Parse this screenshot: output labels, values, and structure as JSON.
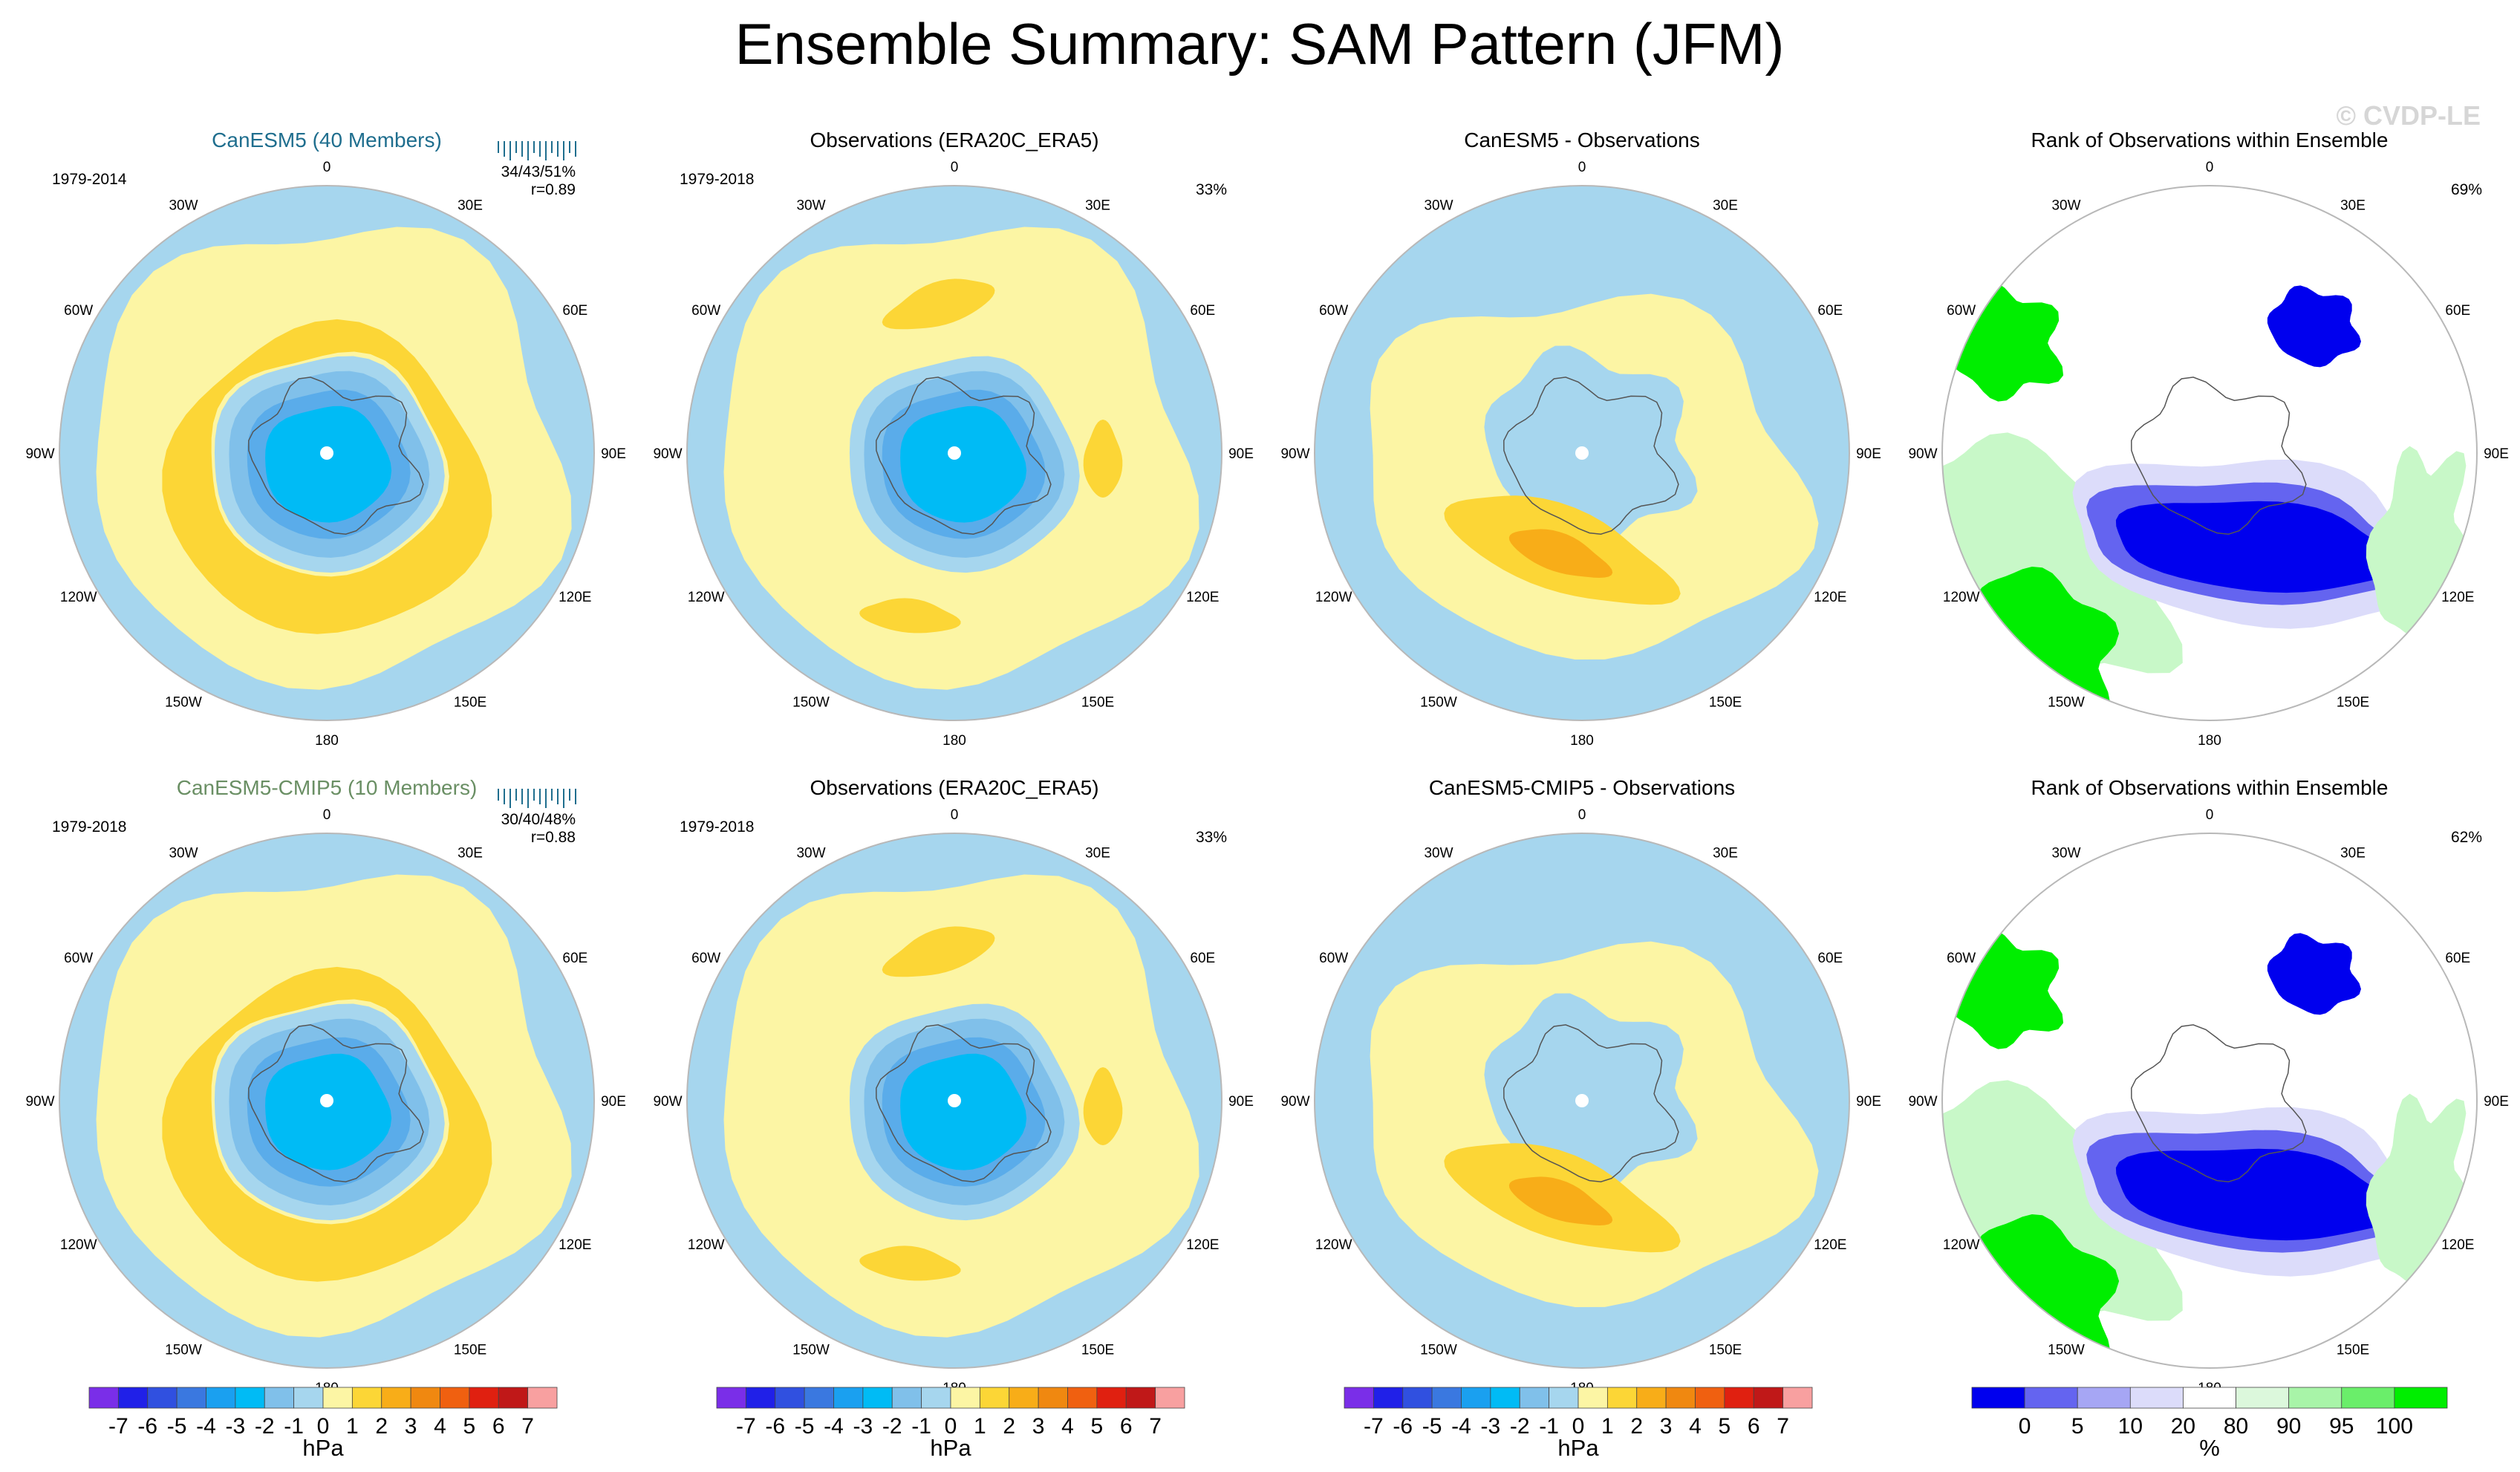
{
  "figure": {
    "title": "Ensemble Summary: SAM Pattern (JFM)",
    "watermark": "© CVDP-LE",
    "colors": {
      "ocean_bg": "#b4dcf2",
      "pos1": "#fcf5a4",
      "pos2": "#fcd636",
      "pos3": "#f8ad18",
      "neg1": "#a6d6ee",
      "neg2": "#80c0ea",
      "neg3": "#5aacea",
      "neg4": "#00bbf5",
      "rank_blue": "#0000ee",
      "rank_midblue": "#6464f0",
      "rank_lightblue": "#dcdcfa",
      "rank_green": "#00ee00",
      "rank_lightgreen": "#c8f8c8",
      "coast": "#555555"
    }
  },
  "chart_data": [
    {
      "type": "heatmap",
      "id": "r1c1",
      "title": "CanESM5 (40 Members)",
      "title_color": "#1f6e8e",
      "period": "1979-2014",
      "stats": "34/43/51%",
      "corr": "r=0.89",
      "units": "hPa",
      "projection": "south polar stereographic",
      "lon_labels": [
        "0",
        "30E",
        "60E",
        "90E",
        "120E",
        "150E",
        "180",
        "150W",
        "120W",
        "90W",
        "60W",
        "30W"
      ],
      "field": {
        "center": -4.0,
        "max": 2.5,
        "min": -4.5
      }
    },
    {
      "type": "heatmap",
      "id": "r1c2",
      "title": "Observations (ERA20C_ERA5)",
      "period": "1979-2018",
      "pct": "33%",
      "units": "hPa",
      "lon_labels": [
        "0",
        "30E",
        "60E",
        "90E",
        "120E",
        "150E",
        "180",
        "150W",
        "120W",
        "90W",
        "60W",
        "30W"
      ],
      "field": {
        "center": -4.0,
        "max": 2.0,
        "min": -4.0
      }
    },
    {
      "type": "heatmap",
      "id": "r1c3",
      "title": "CanESM5 - Observations",
      "units": "hPa",
      "lon_labels": [
        "0",
        "30E",
        "60E",
        "90E",
        "120E",
        "150E",
        "180",
        "150W",
        "120W",
        "90W",
        "60W",
        "30W"
      ],
      "field": {
        "max": 2.5,
        "min": -1.0
      }
    },
    {
      "type": "heatmap",
      "id": "r1c4",
      "title": "Rank of Observations within Ensemble",
      "pct": "69%",
      "units": "%",
      "lon_labels": [
        "0",
        "30E",
        "60E",
        "90E",
        "120E",
        "150E",
        "180",
        "150W",
        "120W",
        "90W",
        "60W",
        "30W"
      ]
    },
    {
      "type": "heatmap",
      "id": "r2c1",
      "title": "CanESM5-CMIP5 (10 Members)",
      "title_color": "#6a8f64",
      "period": "1979-2018",
      "stats": "30/40/48%",
      "corr": "r=0.88",
      "units": "hPa",
      "lon_labels": [
        "0",
        "30E",
        "60E",
        "90E",
        "120E",
        "150E",
        "180",
        "150W",
        "120W",
        "90W",
        "60W",
        "30W"
      ],
      "field": {
        "center": -4.0,
        "max": 2.0,
        "min": -4.5
      }
    },
    {
      "type": "heatmap",
      "id": "r2c2",
      "title": "Observations (ERA20C_ERA5)",
      "period": "1979-2018",
      "pct": "33%",
      "units": "hPa",
      "lon_labels": [
        "0",
        "30E",
        "60E",
        "90E",
        "120E",
        "150E",
        "180",
        "150W",
        "120W",
        "90W",
        "60W",
        "30W"
      ],
      "field": {
        "center": -4.0,
        "max": 2.0,
        "min": -4.0
      }
    },
    {
      "type": "heatmap",
      "id": "r2c3",
      "title": "CanESM5-CMIP5 - Observations",
      "units": "hPa",
      "lon_labels": [
        "0",
        "30E",
        "60E",
        "90E",
        "120E",
        "150E",
        "180",
        "150W",
        "120W",
        "90W",
        "60W",
        "30W"
      ],
      "field": {
        "max": 3.0,
        "min": -1.0
      }
    },
    {
      "type": "heatmap",
      "id": "r2c4",
      "title": "Rank of Observations within Ensemble",
      "pct": "62%",
      "units": "%",
      "lon_labels": [
        "0",
        "30E",
        "60E",
        "90E",
        "120E",
        "150E",
        "180",
        "150W",
        "120W",
        "90W",
        "60W",
        "30W"
      ]
    }
  ],
  "colorbars": {
    "hpa": {
      "labels": [
        "-7",
        "-6",
        "-5",
        "-4",
        "-3",
        "-2",
        "-1",
        "0",
        "1",
        "2",
        "3",
        "4",
        "5",
        "6",
        "7"
      ],
      "colors": [
        "#7a2ee8",
        "#2020e8",
        "#3050e0",
        "#3a78e0",
        "#1aa0f0",
        "#00bbf5",
        "#80c0ea",
        "#a6d6ee",
        "#fcf5a4",
        "#fcd636",
        "#f8ad18",
        "#f08810",
        "#f06010",
        "#e02010",
        "#c01818",
        "#f8a0a0"
      ],
      "unit": "hPa"
    },
    "rank": {
      "labels": [
        "0",
        "5",
        "10",
        "20",
        "80",
        "90",
        "95",
        "100"
      ],
      "colors": [
        "#0000ee",
        "#6464f0",
        "#a6a6f4",
        "#dcdcfa",
        "#ffffff",
        "#dcf8dc",
        "#a8f4a8",
        "#6aee6a",
        "#00ee00"
      ],
      "unit": "%"
    }
  }
}
